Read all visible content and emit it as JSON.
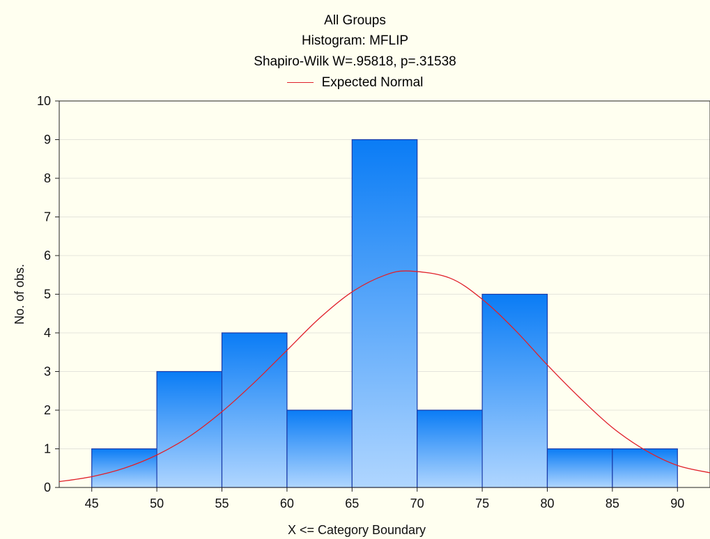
{
  "chart_data": {
    "type": "bar",
    "title": "All Groups",
    "subtitle": "Histogram: MFLIP",
    "test_label": "Shapiro-Wilk W=.95818, p=.31538",
    "legend": [
      {
        "name": "Expected Normal",
        "color": "#e0202a"
      }
    ],
    "xlabel": "X <= Category Boundary",
    "ylabel": "No. of obs.",
    "xlim": [
      42.5,
      92.5
    ],
    "ylim": [
      0,
      10
    ],
    "x_ticks": [
      45,
      50,
      55,
      60,
      65,
      70,
      75,
      80,
      85,
      90
    ],
    "y_ticks": [
      0,
      1,
      2,
      3,
      4,
      5,
      6,
      7,
      8,
      9,
      10
    ],
    "bins": [
      {
        "from": 45,
        "to": 50,
        "count": 1
      },
      {
        "from": 50,
        "to": 55,
        "count": 3
      },
      {
        "from": 55,
        "to": 60,
        "count": 4
      },
      {
        "from": 60,
        "to": 65,
        "count": 2
      },
      {
        "from": 65,
        "to": 70,
        "count": 9
      },
      {
        "from": 70,
        "to": 75,
        "count": 2
      },
      {
        "from": 75,
        "to": 80,
        "count": 5
      },
      {
        "from": 80,
        "to": 85,
        "count": 1
      },
      {
        "from": 85,
        "to": 90,
        "count": 1
      }
    ],
    "expected_normal": {
      "x": [
        42.5,
        45,
        47.5,
        50,
        52.5,
        55,
        57.5,
        60,
        62.5,
        65,
        67.5,
        69.4,
        72.5,
        75,
        77.5,
        80,
        82.5,
        85,
        87.5,
        90,
        92.5
      ],
      "y": [
        0.15,
        0.28,
        0.5,
        0.84,
        1.32,
        1.96,
        2.72,
        3.55,
        4.38,
        5.06,
        5.49,
        5.6,
        5.42,
        4.87,
        4.08,
        3.17,
        2.32,
        1.55,
        0.97,
        0.57,
        0.38
      ]
    },
    "grid": true,
    "bar_color_top": "#0a7cf5",
    "bar_color_bottom": "#b0d6ff",
    "bar_edge": "#1a3aa8"
  }
}
